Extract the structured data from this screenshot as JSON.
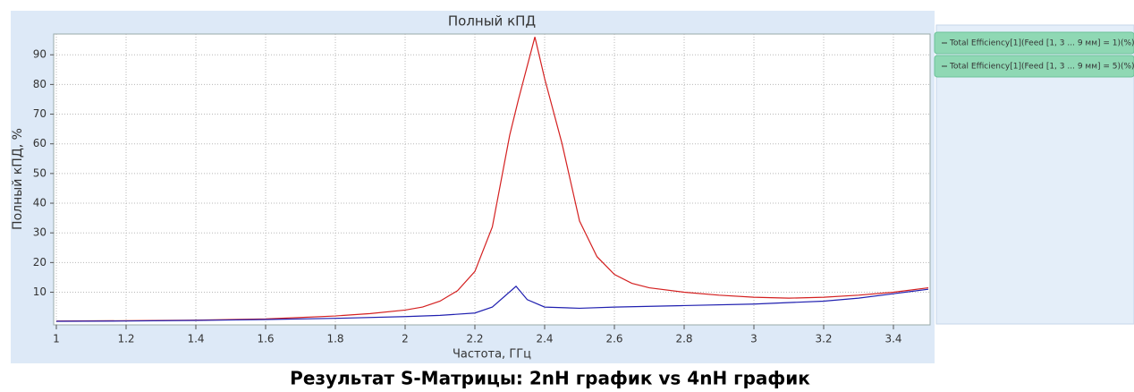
{
  "chart_data": {
    "type": "line",
    "title": "Полный кПД",
    "xlabel": "Частота, ГГц",
    "ylabel": "Полный кПД, %",
    "caption": "Результат S-Матрицы: 2nH график vs 4nH график",
    "xlim": [
      1,
      3.5
    ],
    "ylim": [
      -1,
      97
    ],
    "xticks": [
      1,
      1.2,
      1.4,
      1.6,
      1.8,
      2,
      2.2,
      2.4,
      2.6,
      2.8,
      3,
      3.2,
      3.4
    ],
    "yticks": [
      10,
      20,
      30,
      40,
      50,
      60,
      70,
      80,
      90
    ],
    "grid": true,
    "legend": "right",
    "series": [
      {
        "name": "Total Efficiency[1](Feed [1, 3 ... 9 мм] = 1)(%)",
        "color": "#d42020",
        "x": [
          1,
          1.2,
          1.4,
          1.6,
          1.8,
          1.9,
          2,
          2.05,
          2.1,
          2.15,
          2.2,
          2.25,
          2.3,
          2.325,
          2.372,
          2.4,
          2.45,
          2.5,
          2.55,
          2.6,
          2.65,
          2.7,
          2.8,
          2.9,
          3,
          3.1,
          3.2,
          3.3,
          3.4,
          3.5
        ],
        "values": [
          0.3,
          0.4,
          0.6,
          1,
          2,
          2.8,
          4,
          5,
          7,
          10.5,
          17,
          32,
          63,
          75,
          96,
          82,
          60,
          34,
          22,
          16,
          13,
          11.5,
          10,
          9,
          8.3,
          8,
          8.3,
          9,
          10,
          11.5
        ]
      },
      {
        "name": "Total Efficiency[1](Feed [1, 3 ... 9 мм] = 5)(%)",
        "color": "#2020b0",
        "x": [
          1,
          1.2,
          1.4,
          1.6,
          1.8,
          2,
          2.1,
          2.2,
          2.25,
          2.318,
          2.35,
          2.4,
          2.5,
          2.6,
          2.8,
          3,
          3.2,
          3.3,
          3.4,
          3.5
        ],
        "values": [
          0.2,
          0.3,
          0.5,
          0.8,
          1.2,
          1.8,
          2.2,
          3,
          5,
          12,
          7.5,
          5,
          4.6,
          5,
          5.5,
          6,
          7,
          8,
          9.5,
          11
        ]
      }
    ]
  }
}
